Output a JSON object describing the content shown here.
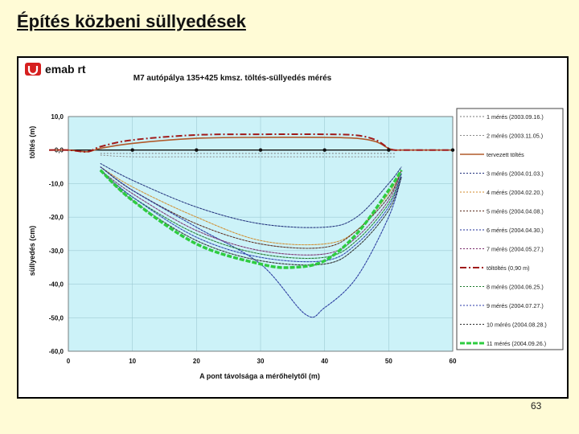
{
  "slide": {
    "title": "Építés közbeni süllyedések",
    "page_number": "63"
  },
  "brand": {
    "name": "emab rt",
    "logo_color": "#d62020"
  },
  "chart_data": {
    "type": "line",
    "title": "M7 autópálya 135+425 kmsz. töltés-süllyedés mérés",
    "xlabel": "A pont távolsága a mérőhelytől (m)",
    "ylabel_top": "töltés (m)",
    "ylabel_bottom": "süllyedés (cm)",
    "xlim": [
      0,
      60
    ],
    "ylim": [
      -60,
      10
    ],
    "xticks": [
      "0",
      "10",
      "20",
      "30",
      "40",
      "50",
      "60"
    ],
    "yticks": [
      "10,0",
      "0,0",
      "-10,0",
      "-20,0",
      "-30,0",
      "-40,0",
      "-50,0",
      "-60,0"
    ],
    "grid": true,
    "legend_position": "right",
    "plot_background": "#ccf2f8",
    "survey_points_x": [
      10,
      20,
      30,
      40,
      50,
      60
    ],
    "series": [
      {
        "name": "1 mérés (2003.09.16.)",
        "style": "dotted",
        "color": "#7a7a7a",
        "x": [
          5,
          10,
          20,
          30,
          40,
          48,
          51
        ],
        "y": [
          -1,
          -1,
          -1,
          -1,
          -1,
          -1,
          -1
        ]
      },
      {
        "name": "2 mérés (2003.11.05.)",
        "style": "dotted",
        "color": "#8a8a8a",
        "x": [
          5,
          10,
          20,
          30,
          40,
          48,
          51
        ],
        "y": [
          -1.5,
          -2,
          -2,
          -2,
          -2,
          -2,
          -2
        ]
      },
      {
        "name": "tervezett töltés",
        "style": "solid",
        "color": "#b05a2a",
        "x": [
          -3,
          0,
          3,
          5,
          10,
          20,
          30,
          40,
          45,
          48,
          50,
          51,
          52,
          60
        ],
        "y": [
          0,
          0,
          -0.5,
          0.5,
          2,
          3.5,
          3.8,
          3.8,
          3.5,
          2.5,
          0.5,
          0,
          0,
          0
        ]
      },
      {
        "name": "3 mérés (2004.01.03.)",
        "style": "dotted",
        "color": "#1f2f7a",
        "x": [
          5,
          10,
          20,
          30,
          40,
          45,
          50,
          52
        ],
        "y": [
          -4,
          -9,
          -17,
          -22,
          -23,
          -20,
          -10,
          -5
        ]
      },
      {
        "name": "4 mérés (2004.02.20.)",
        "style": "dotted",
        "color": "#d18a2a",
        "x": [
          5,
          10,
          20,
          30,
          40,
          45,
          50,
          52
        ],
        "y": [
          -5,
          -11,
          -20,
          -27,
          -28,
          -24,
          -13,
          -6
        ]
      },
      {
        "name": "5 mérés (2004.04.08.)",
        "style": "dotted",
        "color": "#5a2a1a",
        "x": [
          5,
          10,
          20,
          30,
          40,
          45,
          50,
          52
        ],
        "y": [
          -5,
          -12,
          -22,
          -28,
          -29,
          -24,
          -14,
          -6
        ]
      },
      {
        "name": "6 mérés (2004.04.30.)",
        "style": "dotted",
        "color": "#1f2f9a",
        "x": [
          5,
          10,
          20,
          30,
          37,
          40,
          45,
          50,
          52
        ],
        "y": [
          -5,
          -12,
          -23,
          -34,
          -49,
          -47,
          -38,
          -20,
          -8
        ]
      },
      {
        "name": "7 mérés (2004.05.27.)",
        "style": "dotted",
        "color": "#7a2a6a",
        "x": [
          5,
          10,
          20,
          30,
          40,
          45,
          50,
          52
        ],
        "y": [
          -6,
          -13,
          -24,
          -30,
          -31,
          -26,
          -15,
          -6
        ]
      },
      {
        "name": "töltöltés (0,90 m)",
        "style": "dashdot",
        "color": "#a01a1a",
        "x": [
          -3,
          0,
          3,
          5,
          10,
          20,
          30,
          40,
          45,
          48,
          50,
          51,
          52,
          60
        ],
        "y": [
          0,
          0,
          -0.5,
          1,
          3,
          4.5,
          4.7,
          4.7,
          4.4,
          3,
          0.5,
          0,
          0,
          0
        ]
      },
      {
        "name": "8 mérés (2004.06.25.)",
        "style": "dotted",
        "color": "#1a7a2a",
        "x": [
          5,
          10,
          20,
          30,
          40,
          45,
          50,
          52
        ],
        "y": [
          -6,
          -14,
          -25,
          -31,
          -32,
          -27,
          -16,
          -7
        ]
      },
      {
        "name": "9 mérés (2004.07.27.)",
        "style": "dotted",
        "color": "#2a3aaa",
        "x": [
          5,
          10,
          20,
          30,
          40,
          45,
          50,
          52
        ],
        "y": [
          -6,
          -14,
          -26,
          -32,
          -33,
          -28,
          -17,
          -7
        ]
      },
      {
        "name": "10 mérés (2004.08.28.)",
        "style": "dotted",
        "color": "#2a2a2a",
        "x": [
          5,
          10,
          20,
          30,
          40,
          45,
          50,
          52
        ],
        "y": [
          -6,
          -15,
          -27,
          -33,
          -34,
          -29,
          -18,
          -8
        ]
      },
      {
        "name": "11 mérés (2004.09.26.)",
        "style": "thick-dashed",
        "color": "#2ecc40",
        "x": [
          5,
          10,
          20,
          30,
          35,
          40,
          45,
          50,
          52
        ],
        "y": [
          -6,
          -15,
          -28,
          -34,
          -35,
          -33,
          -25,
          -12,
          -6
        ]
      }
    ]
  }
}
